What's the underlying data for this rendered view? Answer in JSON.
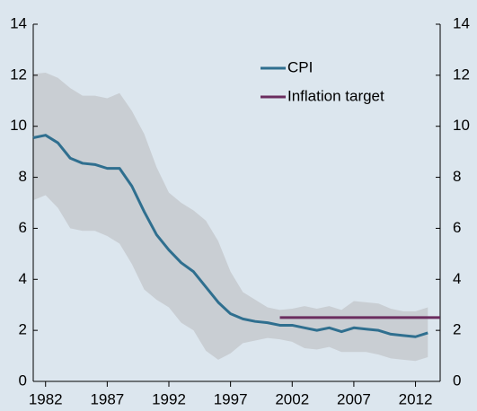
{
  "chart_data": {
    "type": "line",
    "x": [
      1981,
      1982,
      1983,
      1984,
      1985,
      1986,
      1987,
      1988,
      1989,
      1990,
      1991,
      1992,
      1993,
      1994,
      1995,
      1996,
      1997,
      1998,
      1999,
      2000,
      2001,
      2002,
      2003,
      2004,
      2005,
      2006,
      2007,
      2008,
      2009,
      2010,
      2011,
      2012,
      2013
    ],
    "series": [
      {
        "name": "CPI",
        "color": "#2f6f8f",
        "values": [
          9.55,
          9.65,
          9.35,
          8.75,
          8.55,
          8.5,
          8.35,
          8.35,
          7.65,
          6.65,
          5.75,
          5.15,
          4.65,
          4.3,
          3.7,
          3.1,
          2.65,
          2.45,
          2.35,
          2.3,
          2.2,
          2.2,
          2.1,
          2.0,
          2.1,
          1.95,
          2.1,
          2.05,
          2.0,
          1.85,
          1.8,
          1.75,
          1.9
        ]
      },
      {
        "name": "Inflation target",
        "color": "#6b2d5f",
        "x": [
          2001,
          2014
        ],
        "values": [
          2.5,
          2.5
        ]
      }
    ],
    "band": {
      "color": "#c9ced3",
      "upper": [
        12.05,
        12.1,
        11.9,
        11.5,
        11.2,
        11.2,
        11.1,
        11.3,
        10.6,
        9.7,
        8.4,
        7.4,
        7.0,
        6.7,
        6.3,
        5.5,
        4.3,
        3.5,
        3.2,
        2.9,
        2.8,
        2.85,
        2.95,
        2.85,
        2.95,
        2.8,
        3.15,
        3.1,
        3.05,
        2.85,
        2.75,
        2.75,
        2.9
      ],
      "lower": [
        7.1,
        7.3,
        6.8,
        6.0,
        5.9,
        5.9,
        5.7,
        5.4,
        4.6,
        3.6,
        3.2,
        2.9,
        2.3,
        2.0,
        1.2,
        0.85,
        1.1,
        1.5,
        1.6,
        1.7,
        1.65,
        1.55,
        1.3,
        1.25,
        1.35,
        1.15,
        1.15,
        1.15,
        1.05,
        0.9,
        0.85,
        0.8,
        0.95
      ]
    },
    "xlim": [
      1981,
      2014
    ],
    "xticks": [
      1982,
      1987,
      1992,
      1997,
      2002,
      2007,
      2012
    ],
    "ylim": [
      0,
      14
    ],
    "yticks": [
      0,
      2,
      4,
      6,
      8,
      10,
      12,
      14
    ],
    "y2lim": [
      0,
      14
    ],
    "y2ticks": [
      0,
      2,
      4,
      6,
      8,
      10,
      12,
      14
    ],
    "legend": "upper right"
  }
}
